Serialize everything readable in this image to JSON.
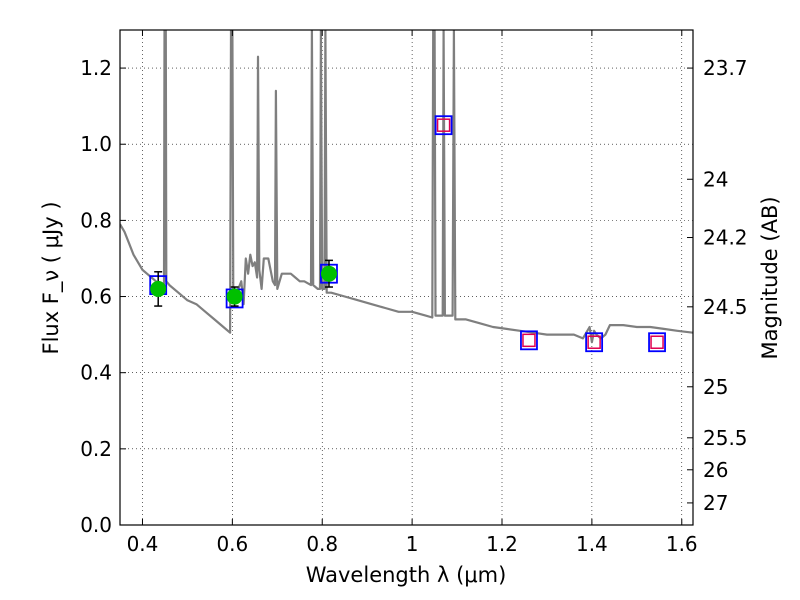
{
  "chart_data": {
    "type": "scatter",
    "title": "",
    "xlabel": "Wavelength  λ (μm)",
    "ylabel": "Flux  F_ν  ( μJy )",
    "ylabel_right": "Magnitude (AB)",
    "xlim": [
      0.35,
      1.625
    ],
    "ylim": [
      0.0,
      1.3
    ],
    "grid": true,
    "x_ticks": [
      0.4,
      0.6,
      0.8,
      1.0,
      1.2,
      1.4,
      1.6
    ],
    "x_tick_labels": [
      "0.4",
      "0.6",
      "0.8",
      "1",
      "1.2",
      "1.4",
      "1.6"
    ],
    "y_ticks": [
      0.0,
      0.2,
      0.4,
      0.6,
      0.8,
      1.0,
      1.2
    ],
    "y_tick_labels": [
      "0.0",
      "0.2",
      "0.4",
      "0.6",
      "0.8",
      "1.0",
      "1.2"
    ],
    "right_ticks": [
      {
        "label": "23.7",
        "flux": 1.2
      },
      {
        "label": "24",
        "flux": 0.908
      },
      {
        "label": "24.2",
        "flux": 0.755
      },
      {
        "label": "24.5",
        "flux": 0.573
      },
      {
        "label": "25",
        "flux": 0.363
      },
      {
        "label": "25.5",
        "flux": 0.229
      },
      {
        "label": "26",
        "flux": 0.145
      },
      {
        "label": "27",
        "flux": 0.058
      }
    ],
    "series": [
      {
        "type": "line",
        "color": "#7f7f7f",
        "points": [
          [
            0.35,
            0.79
          ],
          [
            0.36,
            0.77
          ],
          [
            0.37,
            0.74
          ],
          [
            0.38,
            0.71
          ],
          [
            0.39,
            0.69
          ],
          [
            0.4,
            0.67
          ],
          [
            0.41,
            0.66
          ],
          [
            0.42,
            0.65
          ],
          [
            0.43,
            0.64
          ],
          [
            0.44,
            0.63
          ],
          [
            0.448,
            0.63
          ],
          [
            0.449,
            1.3
          ],
          [
            0.452,
            1.3
          ],
          [
            0.453,
            0.64
          ],
          [
            0.46,
            0.63
          ],
          [
            0.48,
            0.61
          ],
          [
            0.5,
            0.59
          ],
          [
            0.52,
            0.58
          ],
          [
            0.54,
            0.56
          ],
          [
            0.56,
            0.54
          ],
          [
            0.58,
            0.52
          ],
          [
            0.595,
            0.505
          ],
          [
            0.597,
            1.3
          ],
          [
            0.6,
            1.3
          ],
          [
            0.602,
            0.59
          ],
          [
            0.61,
            0.61
          ],
          [
            0.62,
            0.64
          ],
          [
            0.625,
            0.58
          ],
          [
            0.63,
            0.7
          ],
          [
            0.635,
            0.66
          ],
          [
            0.64,
            0.71
          ],
          [
            0.645,
            0.68
          ],
          [
            0.65,
            0.69
          ],
          [
            0.655,
            0.65
          ],
          [
            0.657,
            1.23
          ],
          [
            0.66,
            0.67
          ],
          [
            0.665,
            0.62
          ],
          [
            0.67,
            0.7
          ],
          [
            0.68,
            0.7
          ],
          [
            0.69,
            0.64
          ],
          [
            0.695,
            0.63
          ],
          [
            0.697,
            1.14
          ],
          [
            0.7,
            0.62
          ],
          [
            0.71,
            0.66
          ],
          [
            0.72,
            0.66
          ],
          [
            0.73,
            0.66
          ],
          [
            0.74,
            0.65
          ],
          [
            0.75,
            0.64
          ],
          [
            0.76,
            0.64
          ],
          [
            0.775,
            0.63
          ],
          [
            0.777,
            1.3
          ],
          [
            0.78,
            0.63
          ],
          [
            0.79,
            0.62
          ],
          [
            0.795,
            0.62
          ],
          [
            0.797,
            1.3
          ],
          [
            0.8,
            0.62
          ],
          [
            0.805,
            0.62
          ],
          [
            0.807,
            1.3
          ],
          [
            0.81,
            0.61
          ],
          [
            0.82,
            0.61
          ],
          [
            0.85,
            0.6
          ],
          [
            0.88,
            0.59
          ],
          [
            0.91,
            0.58
          ],
          [
            0.94,
            0.57
          ],
          [
            0.97,
            0.56
          ],
          [
            1.0,
            0.56
          ],
          [
            1.03,
            0.55
          ],
          [
            1.045,
            0.545
          ],
          [
            1.047,
            1.3
          ],
          [
            1.05,
            1.3
          ],
          [
            1.052,
            0.55
          ],
          [
            1.06,
            0.55
          ],
          [
            1.068,
            0.55
          ],
          [
            1.07,
            1.3
          ],
          [
            1.073,
            0.55
          ],
          [
            1.08,
            0.55
          ],
          [
            1.09,
            0.55
          ],
          [
            1.093,
            1.3
          ],
          [
            1.096,
            0.54
          ],
          [
            1.12,
            0.54
          ],
          [
            1.15,
            0.53
          ],
          [
            1.18,
            0.52
          ],
          [
            1.21,
            0.515
          ],
          [
            1.24,
            0.51
          ],
          [
            1.27,
            0.505
          ],
          [
            1.3,
            0.5
          ],
          [
            1.33,
            0.5
          ],
          [
            1.36,
            0.5
          ],
          [
            1.38,
            0.49
          ],
          [
            1.395,
            0.52
          ],
          [
            1.4,
            0.48
          ],
          [
            1.405,
            0.51
          ],
          [
            1.41,
            0.5
          ],
          [
            1.42,
            0.49
          ],
          [
            1.43,
            0.5
          ],
          [
            1.44,
            0.525
          ],
          [
            1.47,
            0.525
          ],
          [
            1.5,
            0.52
          ],
          [
            1.53,
            0.52
          ],
          [
            1.56,
            0.515
          ],
          [
            1.59,
            0.51
          ],
          [
            1.625,
            0.505
          ]
        ]
      },
      {
        "type": "model_squares",
        "edgecolor": "#0000ff",
        "points": [
          [
            0.435,
            0.63
          ],
          [
            0.605,
            0.595
          ],
          [
            0.815,
            0.66
          ],
          [
            1.07,
            1.05
          ],
          [
            1.26,
            0.485
          ],
          [
            1.405,
            0.48
          ],
          [
            1.545,
            0.48
          ]
        ]
      },
      {
        "type": "observed",
        "color": "#00c000",
        "points": [
          {
            "x": 0.435,
            "y": 0.62,
            "err": 0.045
          },
          {
            "x": 0.605,
            "y": 0.6,
            "err": 0.025
          },
          {
            "x": 0.815,
            "y": 0.66,
            "err": 0.035
          }
        ]
      },
      {
        "type": "upper_limits",
        "edgecolor": "#e0004f",
        "points": [
          [
            1.07,
            1.05
          ],
          [
            1.26,
            0.485
          ],
          [
            1.405,
            0.48
          ],
          [
            1.545,
            0.48
          ]
        ]
      }
    ]
  }
}
